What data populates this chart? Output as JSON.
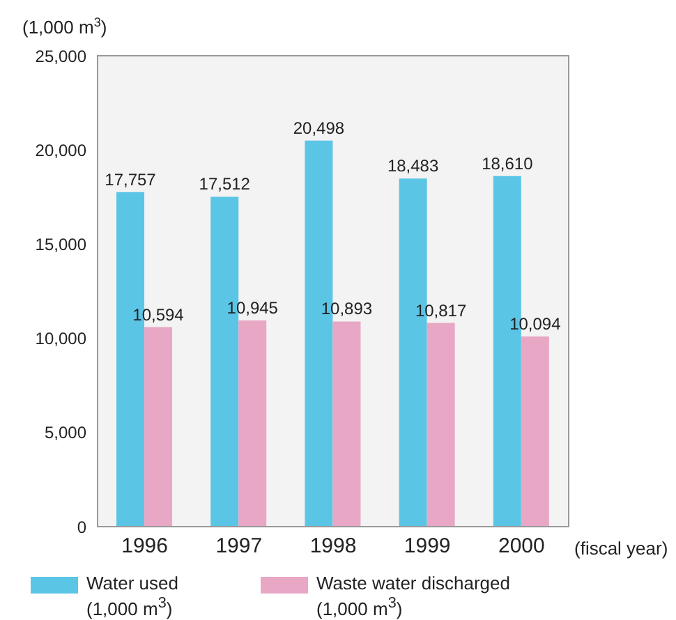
{
  "chart_data": {
    "type": "bar",
    "categories": [
      "1996",
      "1997",
      "1998",
      "1999",
      "2000"
    ],
    "series": [
      {
        "name": "Water used (1,000 m$^{3}$)",
        "color": "#5bc5e5",
        "values": [
          17757,
          17512,
          20498,
          18483,
          18610
        ],
        "value_labels": [
          "17,757",
          "17,512",
          "20,498",
          "18,483",
          "18,610"
        ]
      },
      {
        "name": "Waste water discharged (1,000 m$^{3}$)",
        "color": "#e9a7c6",
        "values": [
          10594,
          10945,
          10893,
          10817,
          10094
        ],
        "value_labels": [
          "10,594",
          "10,945",
          "10,893",
          "10,817",
          "10,094"
        ]
      }
    ],
    "ylabel": "(1,000 m$^{3}$)",
    "xlabel": "(fiscal year)",
    "ylim": [
      0,
      25000
    ],
    "yticks": [
      0,
      {
        "value": 5000,
        "label": "5,000"
      },
      {
        "value": 10000,
        "label": "10,000"
      },
      {
        "value": 15000,
        "label": "15,000"
      },
      {
        "value": 20000,
        "label": "20,000"
      },
      {
        "value": 25000,
        "label": "25,000"
      }
    ],
    "legend": "bottom"
  }
}
